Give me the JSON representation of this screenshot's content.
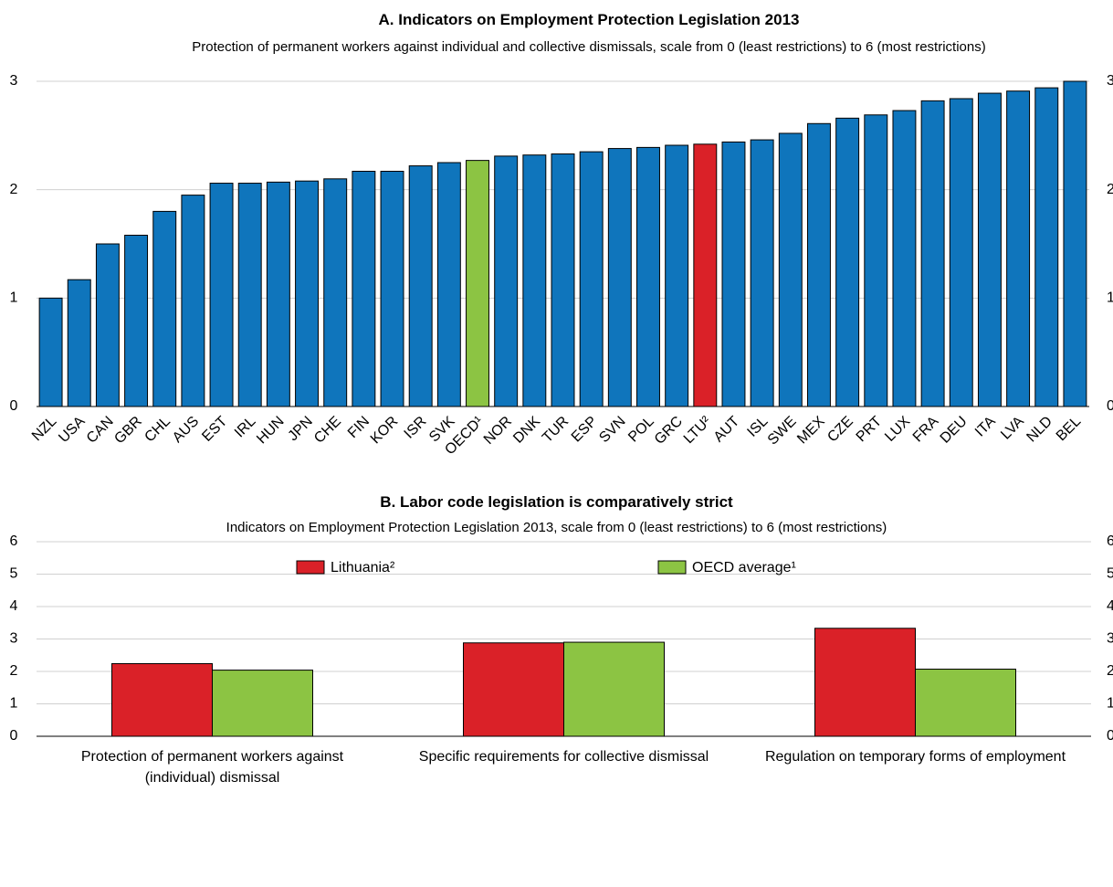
{
  "chart_data": [
    {
      "type": "bar",
      "title": "A. Indicators on Employment Protection Legislation 2013",
      "subtitle": "Protection of permanent workers against individual and collective dismissals, scale from 0 (least restrictions) to 6 (most restrictions)",
      "categories": [
        "NZL",
        "USA",
        "CAN",
        "GBR",
        "CHL",
        "AUS",
        "EST",
        "IRL",
        "HUN",
        "JPN",
        "CHE",
        "FIN",
        "KOR",
        "ISR",
        "SVK",
        "OECD¹",
        "NOR",
        "DNK",
        "TUR",
        "ESP",
        "SVN",
        "POL",
        "GRC",
        "LTU²",
        "AUT",
        "ISL",
        "SWE",
        "MEX",
        "CZE",
        "PRT",
        "LUX",
        "FRA",
        "DEU",
        "ITA",
        "LVA",
        "NLD",
        "BEL"
      ],
      "values": [
        1.0,
        1.17,
        1.5,
        1.58,
        1.8,
        1.95,
        2.06,
        2.06,
        2.07,
        2.08,
        2.1,
        2.17,
        2.17,
        2.22,
        2.25,
        2.27,
        2.31,
        2.32,
        2.33,
        2.35,
        2.38,
        2.39,
        2.41,
        2.42,
        2.44,
        2.46,
        2.52,
        2.61,
        2.66,
        2.69,
        2.73,
        2.82,
        2.84,
        2.89,
        2.91,
        2.94,
        3.0
      ],
      "colors": [
        "#0f75bc",
        "#0f75bc",
        "#0f75bc",
        "#0f75bc",
        "#0f75bc",
        "#0f75bc",
        "#0f75bc",
        "#0f75bc",
        "#0f75bc",
        "#0f75bc",
        "#0f75bc",
        "#0f75bc",
        "#0f75bc",
        "#0f75bc",
        "#0f75bc",
        "#8cc443",
        "#0f75bc",
        "#0f75bc",
        "#0f75bc",
        "#0f75bc",
        "#0f75bc",
        "#0f75bc",
        "#0f75bc",
        "#da2128",
        "#0f75bc",
        "#0f75bc",
        "#0f75bc",
        "#0f75bc",
        "#0f75bc",
        "#0f75bc",
        "#0f75bc",
        "#0f75bc",
        "#0f75bc",
        "#0f75bc",
        "#0f75bc",
        "#0f75bc",
        "#0f75bc"
      ],
      "ylim": [
        0,
        3
      ],
      "yticks": [
        0,
        1,
        2,
        3
      ],
      "grid": true
    },
    {
      "type": "grouped_bar",
      "title": "B. Labor code legislation is comparatively strict",
      "subtitle": "Indicators on Employment Protection Legislation 2013, scale from 0 (least restrictions) to 6 (most restrictions)",
      "categories": [
        "Protection of permanent workers against (individual) dismissal",
        "Specific requirements for collective dismissal",
        "Regulation on temporary forms of employment"
      ],
      "series": [
        {
          "name": "Lithuania²",
          "color": "#da2128",
          "values": [
            2.24,
            2.88,
            3.33
          ]
        },
        {
          "name": "OECD average¹",
          "color": "#8cc443",
          "values": [
            2.04,
            2.9,
            2.07
          ]
        }
      ],
      "ylim": [
        0,
        6
      ],
      "yticks": [
        0,
        1,
        2,
        3,
        4,
        5,
        6
      ],
      "grid": true,
      "legend": "top"
    }
  ]
}
